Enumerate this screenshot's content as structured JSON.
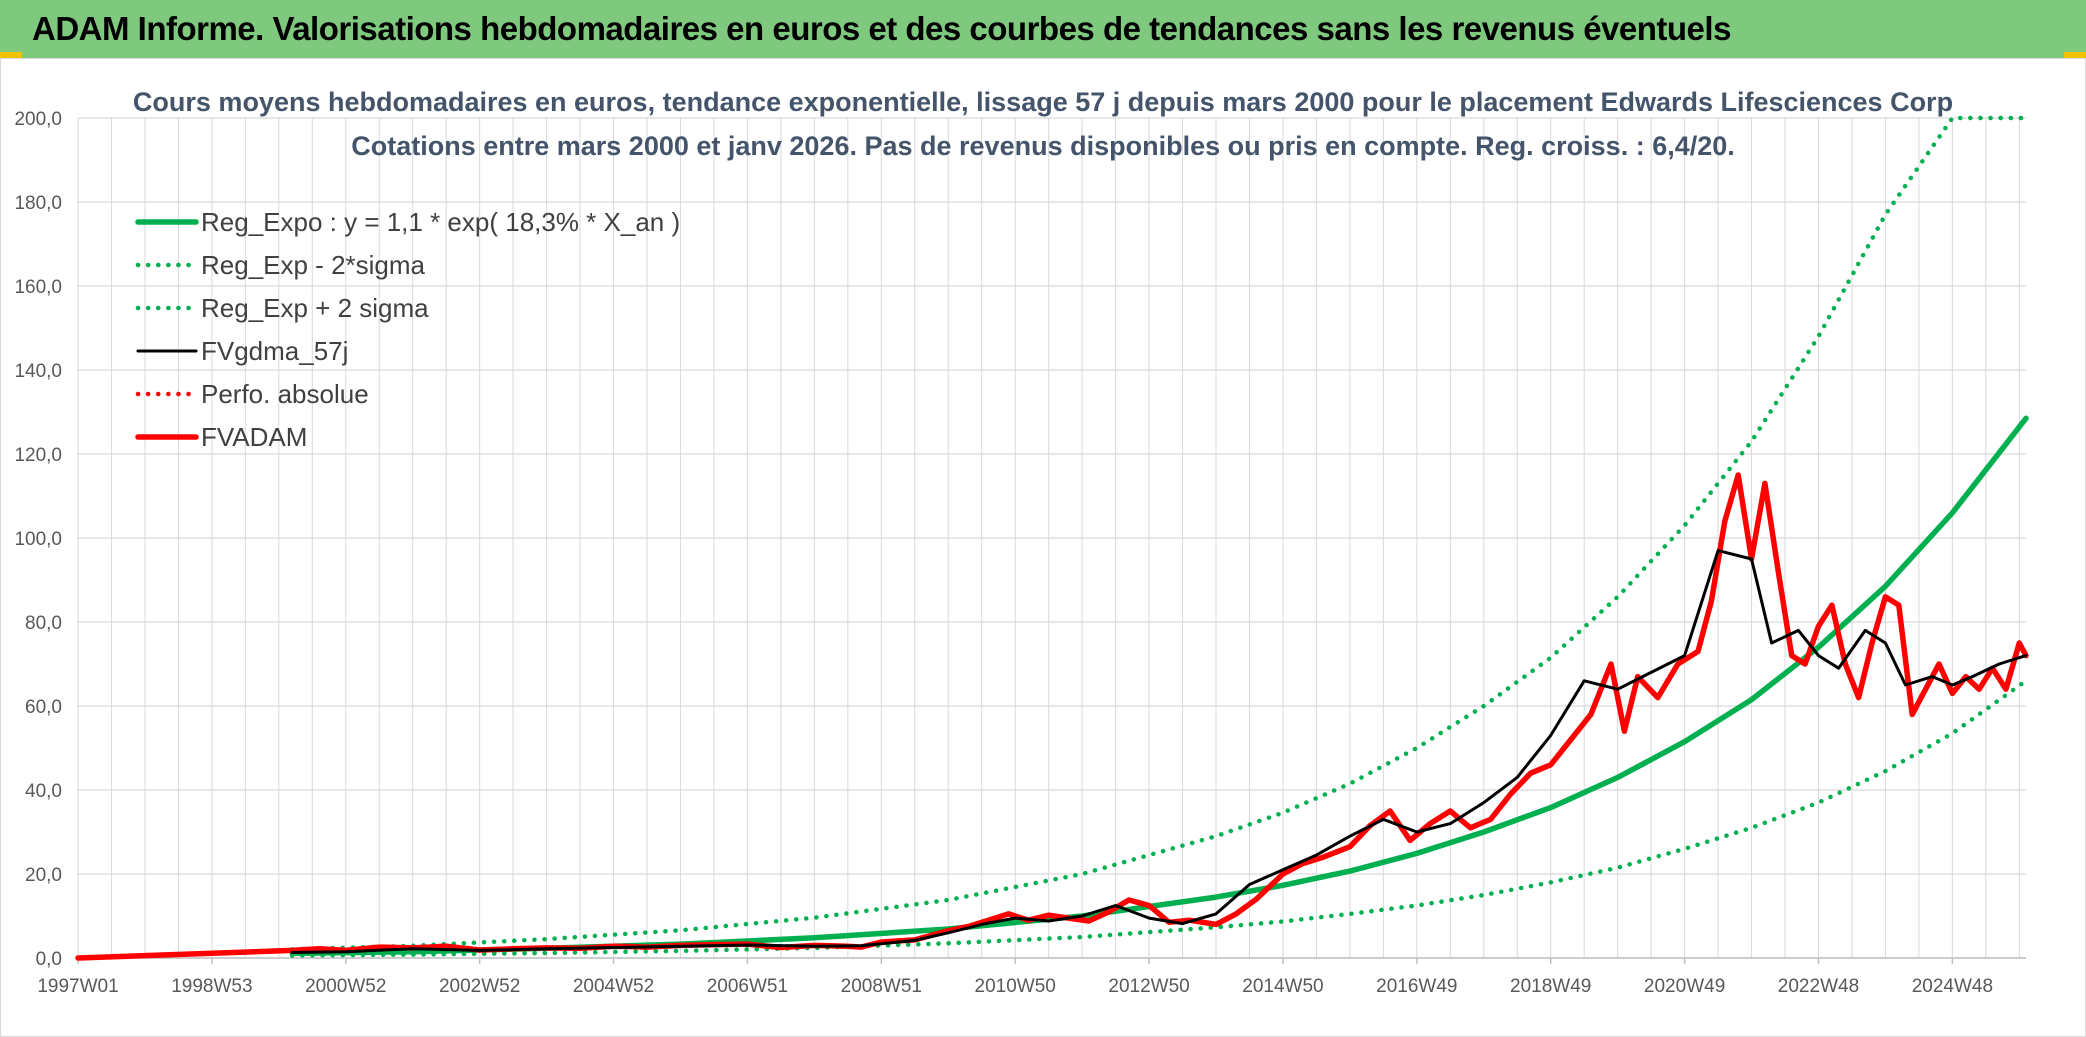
{
  "banner": {
    "title": "ADAM Informe. Valorisations hebdomadaires en euros et des courbes de tendances sans les revenus éventuels"
  },
  "colors": {
    "banner_bg": "#7fc97f",
    "trend_green": "#00b050",
    "fvadam_red": "#ff0000",
    "gdma_black": "#000000",
    "grid": "#d9d9d9",
    "accent_yellow": "#f2c200"
  },
  "chart_data": {
    "type": "line",
    "title": "Cours moyens hebdomadaires en euros, tendance exponentielle, lissage 57 j depuis mars 2000 pour le placement Edwards Lifesciences Corp",
    "subtitle": "Cotations entre mars 2000 et janv 2026. Pas de revenus disponibles ou pris en compte. Reg. croiss. : 6,4/20.",
    "xlabel": "",
    "ylabel": "",
    "ylim": [
      0,
      200
    ],
    "xlim": [
      1997.0,
      2026.1
    ],
    "y_ticks": [
      "0,0",
      "20,0",
      "40,0",
      "60,0",
      "80,0",
      "100,0",
      "120,0",
      "140,0",
      "160,0",
      "180,0",
      "200,0"
    ],
    "x_ticks": [
      {
        "label": "1997W01",
        "x": 1997.0
      },
      {
        "label": "1998W53",
        "x": 1999.0
      },
      {
        "label": "2000W52",
        "x": 2001.0
      },
      {
        "label": "2002W52",
        "x": 2003.0
      },
      {
        "label": "2004W52",
        "x": 2005.0
      },
      {
        "label": "2006W51",
        "x": 2007.0
      },
      {
        "label": "2008W51",
        "x": 2009.0
      },
      {
        "label": "2010W50",
        "x": 2011.0
      },
      {
        "label": "2012W50",
        "x": 2013.0
      },
      {
        "label": "2014W50",
        "x": 2015.0
      },
      {
        "label": "2016W49",
        "x": 2017.0
      },
      {
        "label": "2018W49",
        "x": 2019.0
      },
      {
        "label": "2020W49",
        "x": 2021.0
      },
      {
        "label": "2022W48",
        "x": 2023.0
      },
      {
        "label": "2024W48",
        "x": 2025.0
      }
    ],
    "grid": true,
    "legend_position": "top-left",
    "series": [
      {
        "name": "Reg_Expo : y = 1,1 * exp( 18,3% *  X_an )",
        "style": "solid-thick",
        "color": "#00b050",
        "x": [
          2000.2,
          2002,
          2004,
          2006,
          2008,
          2010,
          2012,
          2014,
          2015,
          2016,
          2017,
          2018,
          2019,
          2020,
          2021,
          2022,
          2023,
          2024,
          2025,
          2026.1
        ],
        "y": [
          1.1,
          1.5,
          2.3,
          3.3,
          4.8,
          6.9,
          10.0,
          14.5,
          17.3,
          20.7,
          24.9,
          30.0,
          35.8,
          43.0,
          51.5,
          61.5,
          74.0,
          88.5,
          106.0,
          128.5
        ]
      },
      {
        "name": "Reg_Exp - 2*sigma",
        "style": "dotted",
        "color": "#00b050",
        "x": [
          2000.2,
          2002,
          2004,
          2006,
          2008,
          2010,
          2012,
          2014,
          2015,
          2016,
          2017,
          2018,
          2019,
          2020,
          2021,
          2022,
          2023,
          2024,
          2025,
          2026.1
        ],
        "y": [
          0.6,
          0.8,
          1.2,
          1.7,
          2.4,
          3.5,
          5.0,
          7.3,
          8.7,
          10.5,
          12.5,
          15.0,
          18.0,
          21.5,
          26.0,
          31.0,
          37.0,
          44.5,
          53.5,
          66.0
        ]
      },
      {
        "name": "Reg_Exp + 2 sigma",
        "style": "dotted",
        "color": "#00b050",
        "x": [
          2000.2,
          2002,
          2004,
          2006,
          2008,
          2010,
          2012,
          2014,
          2015,
          2016,
          2017,
          2018,
          2019,
          2020,
          2021,
          2022,
          2023,
          2024,
          2025,
          2026.1
        ],
        "y": [
          2.1,
          2.9,
          4.5,
          6.6,
          9.6,
          13.8,
          20.0,
          29.0,
          34.6,
          41.5,
          50.0,
          60.0,
          71.5,
          86.0,
          103.0,
          123.0,
          148.0,
          177.0,
          200.0,
          200.0
        ]
      },
      {
        "name": "FVgdma_57j",
        "style": "solid",
        "color": "#000000",
        "x": [
          2000.2,
          2001,
          2002,
          2003,
          2004,
          2005,
          2006,
          2007,
          2008,
          2008.7,
          2009.5,
          2010,
          2010.5,
          2011,
          2011.5,
          2012,
          2012.5,
          2013,
          2013.5,
          2014,
          2014.5,
          2015,
          2015.5,
          2016,
          2016.5,
          2017,
          2017.5,
          2018,
          2018.5,
          2019,
          2019.5,
          2020,
          2020.5,
          2021,
          2021.5,
          2022,
          2022.3,
          2022.7,
          2023,
          2023.3,
          2023.7,
          2024,
          2024.3,
          2024.7,
          2025,
          2025.3,
          2025.7,
          2026.1
        ],
        "y": [
          1.3,
          1.5,
          2.2,
          1.8,
          2.2,
          2.5,
          2.8,
          3.1,
          2.8,
          2.9,
          4.2,
          6.0,
          8.0,
          9.5,
          8.8,
          10.0,
          12.5,
          9.5,
          8.2,
          10.5,
          17.5,
          21.0,
          24.5,
          29.0,
          33.0,
          30.0,
          32.0,
          37.0,
          43.0,
          53.0,
          66.0,
          64.0,
          68.0,
          72.0,
          97.0,
          95.0,
          75.0,
          78.0,
          72.0,
          69.0,
          78.0,
          75.0,
          65.0,
          67.0,
          65.0,
          67.0,
          70.0,
          72.0
        ]
      },
      {
        "name": "Perfo. absolue",
        "style": "dotted",
        "color": "#ff0000",
        "x": [],
        "y": []
      },
      {
        "name": "FVADAM",
        "style": "solid-thick",
        "color": "#ff0000",
        "x": [
          1997.0,
          2000.2,
          2000.6,
          2001,
          2001.5,
          2002,
          2002.5,
          2003,
          2003.5,
          2004,
          2004.5,
          2005,
          2005.5,
          2006,
          2006.5,
          2007,
          2007.5,
          2008,
          2008.5,
          2008.7,
          2009,
          2009.5,
          2010,
          2010.3,
          2010.6,
          2010.9,
          2011.2,
          2011.5,
          2011.8,
          2012.1,
          2012.4,
          2012.7,
          2013,
          2013.3,
          2013.6,
          2014,
          2014.3,
          2014.6,
          2015,
          2015.3,
          2015.6,
          2016,
          2016.3,
          2016.6,
          2016.9,
          2017.2,
          2017.5,
          2017.8,
          2018.1,
          2018.4,
          2018.7,
          2019,
          2019.3,
          2019.6,
          2019.9,
          2020.1,
          2020.3,
          2020.6,
          2020.9,
          2021.2,
          2021.4,
          2021.6,
          2021.8,
          2022.0,
          2022.2,
          2022.4,
          2022.6,
          2022.8,
          2023.0,
          2023.2,
          2023.4,
          2023.6,
          2023.8,
          2024.0,
          2024.2,
          2024.4,
          2024.6,
          2024.8,
          2025.0,
          2025.2,
          2025.4,
          2025.6,
          2025.8,
          2026.0,
          2026.1
        ],
        "y": [
          0.0,
          1.8,
          2.2,
          1.8,
          2.6,
          2.4,
          2.8,
          1.9,
          2.2,
          2.4,
          2.3,
          2.8,
          2.6,
          3.0,
          3.2,
          3.3,
          2.5,
          3.0,
          2.8,
          2.6,
          3.8,
          4.3,
          6.5,
          7.5,
          9.0,
          10.5,
          9.0,
          10.2,
          9.5,
          8.8,
          11.0,
          13.8,
          12.5,
          8.5,
          9.0,
          8.0,
          10.5,
          14.0,
          20.0,
          22.5,
          24.0,
          26.5,
          31.5,
          35.0,
          28.0,
          32.0,
          35.0,
          31.0,
          33.0,
          39.0,
          44.0,
          46.0,
          52.0,
          58.0,
          70.0,
          54.0,
          67.0,
          62.0,
          70.0,
          73.0,
          85.0,
          104.0,
          115.0,
          95.0,
          113.0,
          92.0,
          72.0,
          70.0,
          79.0,
          84.0,
          70.0,
          62.0,
          75.0,
          86.0,
          84.0,
          58.0,
          64.0,
          70.0,
          63.0,
          67.0,
          64.0,
          69.0,
          64.0,
          75.0,
          72.0
        ]
      }
    ]
  }
}
